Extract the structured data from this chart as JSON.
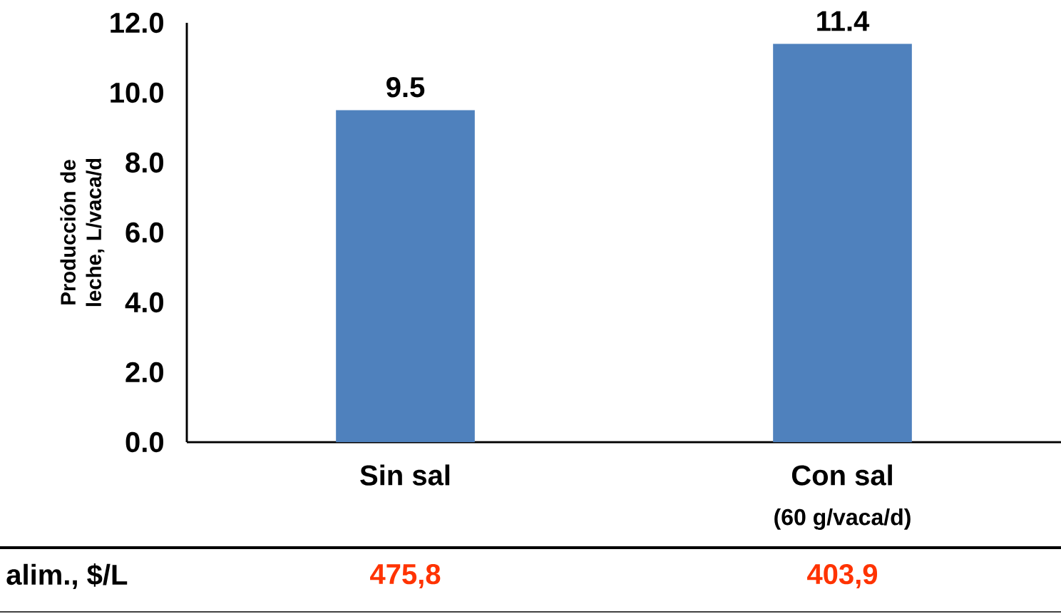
{
  "chart_data": {
    "type": "bar",
    "ylabel": "Producción de leche, L/vaca/d",
    "categories": [
      "Sin sal",
      "Con sal"
    ],
    "values": [
      9.5,
      11.4
    ],
    "color": "#4f81bd",
    "ylim": [
      0,
      12
    ],
    "yticks": [
      {
        "value": 0,
        "label": "0.0"
      },
      {
        "value": 2,
        "label": "2.0"
      },
      {
        "value": 4,
        "label": "4.0"
      },
      {
        "value": 6,
        "label": "6.0"
      },
      {
        "value": 8,
        "label": "8.0"
      },
      {
        "value": 10,
        "label": "10.0"
      },
      {
        "value": 12,
        "label": "12.0"
      }
    ],
    "data_labels": true,
    "annotations": [
      "(60 g/vaca/d)",
      "alim., $/L",
      "475,8",
      "403,9"
    ]
  }
}
